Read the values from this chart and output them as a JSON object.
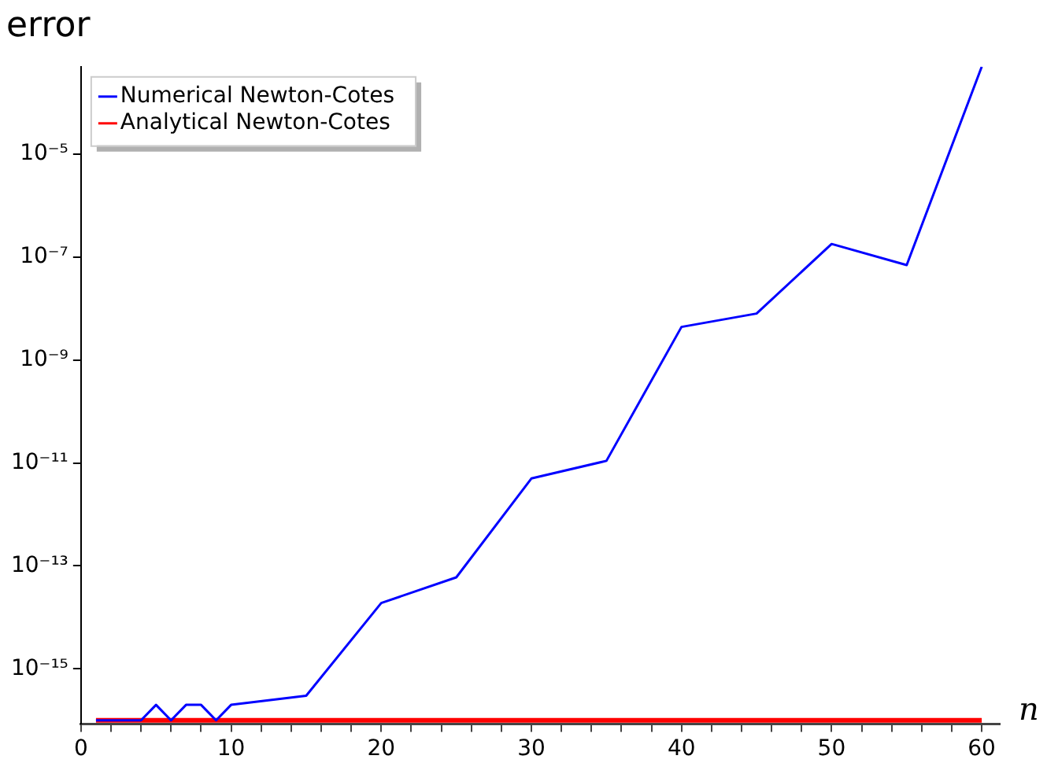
{
  "chart_data": {
    "type": "line",
    "title": "error",
    "xlabel": "n",
    "x": [
      1,
      2,
      3,
      4,
      5,
      6,
      7,
      8,
      9,
      10,
      15,
      20,
      25,
      30,
      35,
      40,
      45,
      50,
      55,
      60
    ],
    "series": [
      {
        "name": "Numerical Newton-Cotes",
        "color": "#0000ff",
        "values": [
          1e-16,
          1e-16,
          1e-16,
          1e-16,
          2e-16,
          1e-16,
          2e-16,
          2e-16,
          1e-16,
          2e-16,
          3e-16,
          1.9e-14,
          6e-14,
          5e-12,
          1.1e-11,
          4.4e-09,
          8e-09,
          1.8e-07,
          7e-08,
          0.0005
        ]
      },
      {
        "name": "Analytical Newton-Cotes",
        "color": "#ff0000",
        "values": [
          1e-16,
          1e-16,
          1e-16,
          1e-16,
          1e-16,
          1e-16,
          1e-16,
          1e-16,
          1e-16,
          1e-16,
          1e-16,
          1e-16,
          1e-16,
          1e-16,
          1e-16,
          1e-16,
          1e-16,
          1e-16,
          1e-16,
          1e-16
        ]
      }
    ],
    "log": "y",
    "xlim": [
      0,
      61.2
    ],
    "ylim": [
      8.5e-17,
      0.0005
    ],
    "xticks": [
      0,
      {
        "value": 2,
        "label": null
      },
      {
        "value": 4,
        "label": null
      },
      {
        "value": 6,
        "label": null
      },
      {
        "value": 8,
        "label": null
      },
      10,
      {
        "value": 12,
        "label": null
      },
      {
        "value": 14,
        "label": null
      },
      {
        "value": 16,
        "label": null
      },
      {
        "value": 18,
        "label": null
      },
      20,
      {
        "value": 22,
        "label": null
      },
      {
        "value": 24,
        "label": null
      },
      {
        "value": 26,
        "label": null
      },
      {
        "value": 28,
        "label": null
      },
      30,
      {
        "value": 32,
        "label": null
      },
      {
        "value": 34,
        "label": null
      },
      {
        "value": 36,
        "label": null
      },
      {
        "value": 38,
        "label": null
      },
      40,
      {
        "value": 42,
        "label": null
      },
      {
        "value": 44,
        "label": null
      },
      {
        "value": 46,
        "label": null
      },
      {
        "value": 48,
        "label": null
      },
      50,
      {
        "value": 52,
        "label": null
      },
      {
        "value": 54,
        "label": null
      },
      {
        "value": 56,
        "label": null
      },
      {
        "value": 58,
        "label": null
      },
      60
    ],
    "yticks": [
      {
        "value": 1e-15,
        "label": "10⁻¹⁵"
      },
      {
        "value": 1e-13,
        "label": "10⁻¹³"
      },
      {
        "value": 1e-11,
        "label": "10⁻¹¹"
      },
      {
        "value": 1e-09,
        "label": "10⁻⁹"
      },
      {
        "value": 1e-07,
        "label": "10⁻⁷"
      },
      {
        "value": 1e-05,
        "label": "10⁻⁵"
      }
    ],
    "grid": false,
    "legend": "top left",
    "marker": "none",
    "line_style": "solid"
  }
}
